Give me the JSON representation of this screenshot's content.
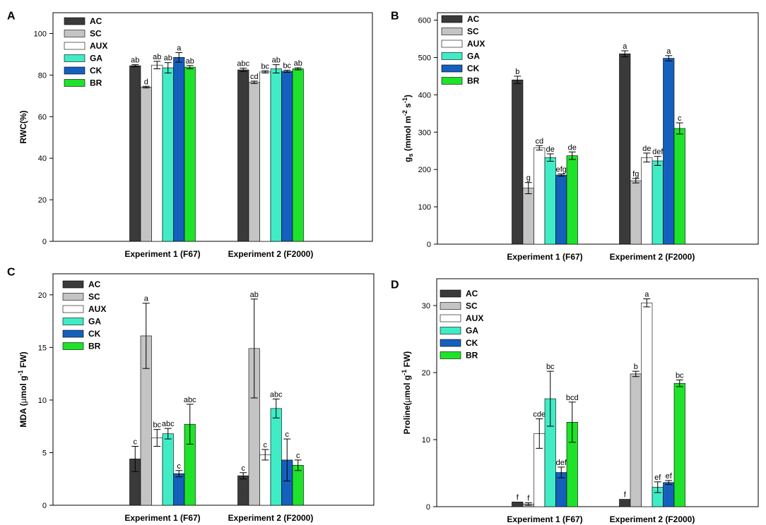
{
  "series_names": [
    "AC",
    "SC",
    "AUX",
    "GA",
    "CK",
    "BR"
  ],
  "colors": {
    "AC": "#3a3a3a",
    "SC": "#c4c4c4",
    "AUX": "#ffffff",
    "GA": "#40ecc5",
    "CK": "#1560bd",
    "BR": "#1ee32a"
  },
  "chart_data": [
    {
      "panel": "A",
      "type": "bar",
      "ylabel": "RWC(%)",
      "ylim": [
        0,
        110
      ],
      "yticks": [
        0,
        20,
        40,
        60,
        80,
        100
      ],
      "categories": [
        "Experiment 1 (F67)",
        "Experiment 2 (F2000)"
      ],
      "series": [
        {
          "name": "AC",
          "values": [
            84.5,
            82.5
          ],
          "errors": [
            0.5,
            0.8
          ],
          "letters": [
            "ab",
            "abc"
          ]
        },
        {
          "name": "SC",
          "values": [
            74.2,
            76.5
          ],
          "errors": [
            0.4,
            0.6
          ],
          "letters": [
            "d",
            "cd"
          ]
        },
        {
          "name": "AUX",
          "values": [
            84.8,
            81.5
          ],
          "errors": [
            1.8,
            0.5
          ],
          "letters": [
            "ab",
            "bc"
          ]
        },
        {
          "name": "GA",
          "values": [
            83.5,
            83.0
          ],
          "errors": [
            2.5,
            2.0
          ],
          "letters": [
            "ab",
            "ab"
          ]
        },
        {
          "name": "CK",
          "values": [
            88.5,
            81.8
          ],
          "errors": [
            2.3,
            0.5
          ],
          "letters": [
            "a",
            "bc"
          ]
        },
        {
          "name": "BR",
          "values": [
            83.8,
            83.0
          ],
          "errors": [
            0.8,
            0.5
          ],
          "letters": [
            "ab",
            "ab"
          ]
        }
      ]
    },
    {
      "panel": "B",
      "type": "bar",
      "ylabel": "gs (mmol m-2 s-1)",
      "ylabel_parts": {
        "main": "g",
        "sub": "s",
        "unit_open": " (mmol m",
        "exp1": "-2",
        "mid": " s",
        "exp2": "-1",
        "close": ")"
      },
      "ylim": [
        0,
        620
      ],
      "yticks": [
        0,
        100,
        200,
        300,
        400,
        500,
        600
      ],
      "categories": [
        "Experiment 1 (F67)",
        "Experiment 2 (F2000)"
      ],
      "series": [
        {
          "name": "AC",
          "values": [
            440,
            510
          ],
          "errors": [
            10,
            8
          ],
          "letters": [
            "b",
            "a"
          ]
        },
        {
          "name": "SC",
          "values": [
            150,
            170
          ],
          "errors": [
            15,
            6
          ],
          "letters": [
            "g",
            "fg"
          ]
        },
        {
          "name": "AUX",
          "values": [
            258,
            232
          ],
          "errors": [
            6,
            12
          ],
          "letters": [
            "cd",
            "de"
          ]
        },
        {
          "name": "GA",
          "values": [
            232,
            223
          ],
          "errors": [
            10,
            12
          ],
          "letters": [
            "de",
            "def"
          ]
        },
        {
          "name": "CK",
          "values": [
            185,
            498
          ],
          "errors": [
            3,
            7
          ],
          "letters": [
            "efg",
            "a"
          ]
        },
        {
          "name": "BR",
          "values": [
            237,
            310
          ],
          "errors": [
            10,
            15
          ],
          "letters": [
            "de",
            "c"
          ]
        }
      ]
    },
    {
      "panel": "C",
      "type": "bar",
      "ylabel": "MDA (µmol g-1 FW)",
      "ylabel_parts": {
        "main": "MDA (",
        "mu": "µ",
        "unit": "mol g",
        "exp": "-1",
        "close": " FW)"
      },
      "ylim": [
        0,
        22
      ],
      "yticks": [
        0,
        5,
        10,
        15,
        20
      ],
      "categories": [
        "Experiment 1 (F67)",
        "Experiment 2 (F2000)"
      ],
      "series": [
        {
          "name": "AC",
          "values": [
            4.4,
            2.8
          ],
          "errors": [
            1.2,
            0.3
          ],
          "letters": [
            "c",
            "c"
          ]
        },
        {
          "name": "SC",
          "values": [
            16.1,
            14.9
          ],
          "errors": [
            3.1,
            4.7
          ],
          "letters": [
            "a",
            "ab"
          ]
        },
        {
          "name": "AUX",
          "values": [
            6.4,
            4.8
          ],
          "errors": [
            0.8,
            0.5
          ],
          "letters": [
            "bc",
            "c"
          ]
        },
        {
          "name": "GA",
          "values": [
            6.8,
            9.2
          ],
          "errors": [
            0.5,
            0.9
          ],
          "letters": [
            "abc",
            "abc"
          ]
        },
        {
          "name": "CK",
          "values": [
            3.0,
            4.3
          ],
          "errors": [
            0.3,
            2.0
          ],
          "letters": [
            "c",
            "c"
          ]
        },
        {
          "name": "BR",
          "values": [
            7.7,
            3.8
          ],
          "errors": [
            1.9,
            0.5
          ],
          "letters": [
            "abc",
            "c"
          ]
        }
      ]
    },
    {
      "panel": "D",
      "type": "bar",
      "ylabel": "Proline(µmol g-1 FW)",
      "ylabel_parts": {
        "main": "Proline(",
        "mu": "µ",
        "unit": "mol g",
        "exp": "-1",
        "close": " FW)"
      },
      "ylim": [
        0,
        34
      ],
      "yticks": [
        0,
        10,
        20,
        30
      ],
      "categories": [
        "Experiment 1 (F67)",
        "Experiment 2 (F2000)"
      ],
      "series": [
        {
          "name": "AC",
          "values": [
            0.7,
            1.1
          ],
          "errors": [
            0,
            0
          ],
          "letters": [
            "f",
            "f"
          ]
        },
        {
          "name": "SC",
          "values": [
            0.4,
            19.8
          ],
          "errors": [
            0.2,
            0.4
          ],
          "letters": [
            "f",
            "b"
          ]
        },
        {
          "name": "AUX",
          "values": [
            10.9,
            30.4
          ],
          "errors": [
            2.2,
            0.6
          ],
          "letters": [
            "cde",
            "a"
          ]
        },
        {
          "name": "GA",
          "values": [
            16.1,
            2.9
          ],
          "errors": [
            4.1,
            0.8
          ],
          "letters": [
            "bc",
            "ef"
          ]
        },
        {
          "name": "CK",
          "values": [
            5.1,
            3.6
          ],
          "errors": [
            0.8,
            0.3
          ],
          "letters": [
            "def",
            "ef"
          ]
        },
        {
          "name": "BR",
          "values": [
            12.6,
            18.4
          ],
          "errors": [
            3.0,
            0.5
          ],
          "letters": [
            "bcd",
            "bc"
          ]
        }
      ]
    }
  ]
}
